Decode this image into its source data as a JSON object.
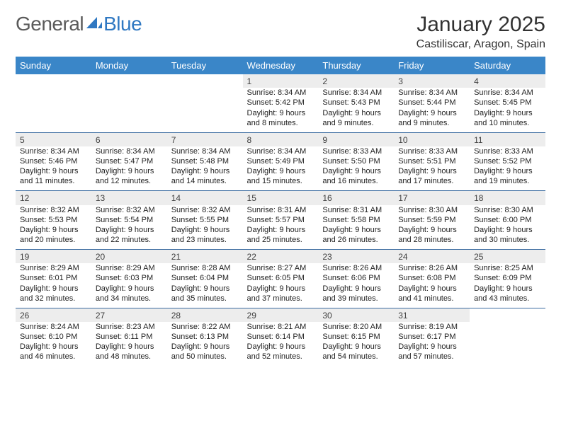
{
  "brand": {
    "word1": "General",
    "word2": "Blue"
  },
  "title": "January 2025",
  "subtitle": "Castiliscar, Aragon, Spain",
  "colors": {
    "header_bg": "#3a86c8",
    "header_text": "#ffffff",
    "daynum_bg": "#ededed",
    "rule": "#3a6ba0",
    "brand_gray": "#5a5a5a",
    "brand_blue": "#2f78c2"
  },
  "day_headers": [
    "Sunday",
    "Monday",
    "Tuesday",
    "Wednesday",
    "Thursday",
    "Friday",
    "Saturday"
  ],
  "weeks": [
    {
      "nums": [
        "",
        "",
        "",
        "1",
        "2",
        "3",
        "4"
      ],
      "cells": [
        null,
        null,
        null,
        {
          "sr": "Sunrise: 8:34 AM",
          "ss": "Sunset: 5:42 PM",
          "dl": "Daylight: 9 hours and 8 minutes."
        },
        {
          "sr": "Sunrise: 8:34 AM",
          "ss": "Sunset: 5:43 PM",
          "dl": "Daylight: 9 hours and 9 minutes."
        },
        {
          "sr": "Sunrise: 8:34 AM",
          "ss": "Sunset: 5:44 PM",
          "dl": "Daylight: 9 hours and 9 minutes."
        },
        {
          "sr": "Sunrise: 8:34 AM",
          "ss": "Sunset: 5:45 PM",
          "dl": "Daylight: 9 hours and 10 minutes."
        }
      ]
    },
    {
      "nums": [
        "5",
        "6",
        "7",
        "8",
        "9",
        "10",
        "11"
      ],
      "cells": [
        {
          "sr": "Sunrise: 8:34 AM",
          "ss": "Sunset: 5:46 PM",
          "dl": "Daylight: 9 hours and 11 minutes."
        },
        {
          "sr": "Sunrise: 8:34 AM",
          "ss": "Sunset: 5:47 PM",
          "dl": "Daylight: 9 hours and 12 minutes."
        },
        {
          "sr": "Sunrise: 8:34 AM",
          "ss": "Sunset: 5:48 PM",
          "dl": "Daylight: 9 hours and 14 minutes."
        },
        {
          "sr": "Sunrise: 8:34 AM",
          "ss": "Sunset: 5:49 PM",
          "dl": "Daylight: 9 hours and 15 minutes."
        },
        {
          "sr": "Sunrise: 8:33 AM",
          "ss": "Sunset: 5:50 PM",
          "dl": "Daylight: 9 hours and 16 minutes."
        },
        {
          "sr": "Sunrise: 8:33 AM",
          "ss": "Sunset: 5:51 PM",
          "dl": "Daylight: 9 hours and 17 minutes."
        },
        {
          "sr": "Sunrise: 8:33 AM",
          "ss": "Sunset: 5:52 PM",
          "dl": "Daylight: 9 hours and 19 minutes."
        }
      ]
    },
    {
      "nums": [
        "12",
        "13",
        "14",
        "15",
        "16",
        "17",
        "18"
      ],
      "cells": [
        {
          "sr": "Sunrise: 8:32 AM",
          "ss": "Sunset: 5:53 PM",
          "dl": "Daylight: 9 hours and 20 minutes."
        },
        {
          "sr": "Sunrise: 8:32 AM",
          "ss": "Sunset: 5:54 PM",
          "dl": "Daylight: 9 hours and 22 minutes."
        },
        {
          "sr": "Sunrise: 8:32 AM",
          "ss": "Sunset: 5:55 PM",
          "dl": "Daylight: 9 hours and 23 minutes."
        },
        {
          "sr": "Sunrise: 8:31 AM",
          "ss": "Sunset: 5:57 PM",
          "dl": "Daylight: 9 hours and 25 minutes."
        },
        {
          "sr": "Sunrise: 8:31 AM",
          "ss": "Sunset: 5:58 PM",
          "dl": "Daylight: 9 hours and 26 minutes."
        },
        {
          "sr": "Sunrise: 8:30 AM",
          "ss": "Sunset: 5:59 PM",
          "dl": "Daylight: 9 hours and 28 minutes."
        },
        {
          "sr": "Sunrise: 8:30 AM",
          "ss": "Sunset: 6:00 PM",
          "dl": "Daylight: 9 hours and 30 minutes."
        }
      ]
    },
    {
      "nums": [
        "19",
        "20",
        "21",
        "22",
        "23",
        "24",
        "25"
      ],
      "cells": [
        {
          "sr": "Sunrise: 8:29 AM",
          "ss": "Sunset: 6:01 PM",
          "dl": "Daylight: 9 hours and 32 minutes."
        },
        {
          "sr": "Sunrise: 8:29 AM",
          "ss": "Sunset: 6:03 PM",
          "dl": "Daylight: 9 hours and 34 minutes."
        },
        {
          "sr": "Sunrise: 8:28 AM",
          "ss": "Sunset: 6:04 PM",
          "dl": "Daylight: 9 hours and 35 minutes."
        },
        {
          "sr": "Sunrise: 8:27 AM",
          "ss": "Sunset: 6:05 PM",
          "dl": "Daylight: 9 hours and 37 minutes."
        },
        {
          "sr": "Sunrise: 8:26 AM",
          "ss": "Sunset: 6:06 PM",
          "dl": "Daylight: 9 hours and 39 minutes."
        },
        {
          "sr": "Sunrise: 8:26 AM",
          "ss": "Sunset: 6:08 PM",
          "dl": "Daylight: 9 hours and 41 minutes."
        },
        {
          "sr": "Sunrise: 8:25 AM",
          "ss": "Sunset: 6:09 PM",
          "dl": "Daylight: 9 hours and 43 minutes."
        }
      ]
    },
    {
      "nums": [
        "26",
        "27",
        "28",
        "29",
        "30",
        "31",
        ""
      ],
      "cells": [
        {
          "sr": "Sunrise: 8:24 AM",
          "ss": "Sunset: 6:10 PM",
          "dl": "Daylight: 9 hours and 46 minutes."
        },
        {
          "sr": "Sunrise: 8:23 AM",
          "ss": "Sunset: 6:11 PM",
          "dl": "Daylight: 9 hours and 48 minutes."
        },
        {
          "sr": "Sunrise: 8:22 AM",
          "ss": "Sunset: 6:13 PM",
          "dl": "Daylight: 9 hours and 50 minutes."
        },
        {
          "sr": "Sunrise: 8:21 AM",
          "ss": "Sunset: 6:14 PM",
          "dl": "Daylight: 9 hours and 52 minutes."
        },
        {
          "sr": "Sunrise: 8:20 AM",
          "ss": "Sunset: 6:15 PM",
          "dl": "Daylight: 9 hours and 54 minutes."
        },
        {
          "sr": "Sunrise: 8:19 AM",
          "ss": "Sunset: 6:17 PM",
          "dl": "Daylight: 9 hours and 57 minutes."
        },
        null
      ]
    }
  ]
}
